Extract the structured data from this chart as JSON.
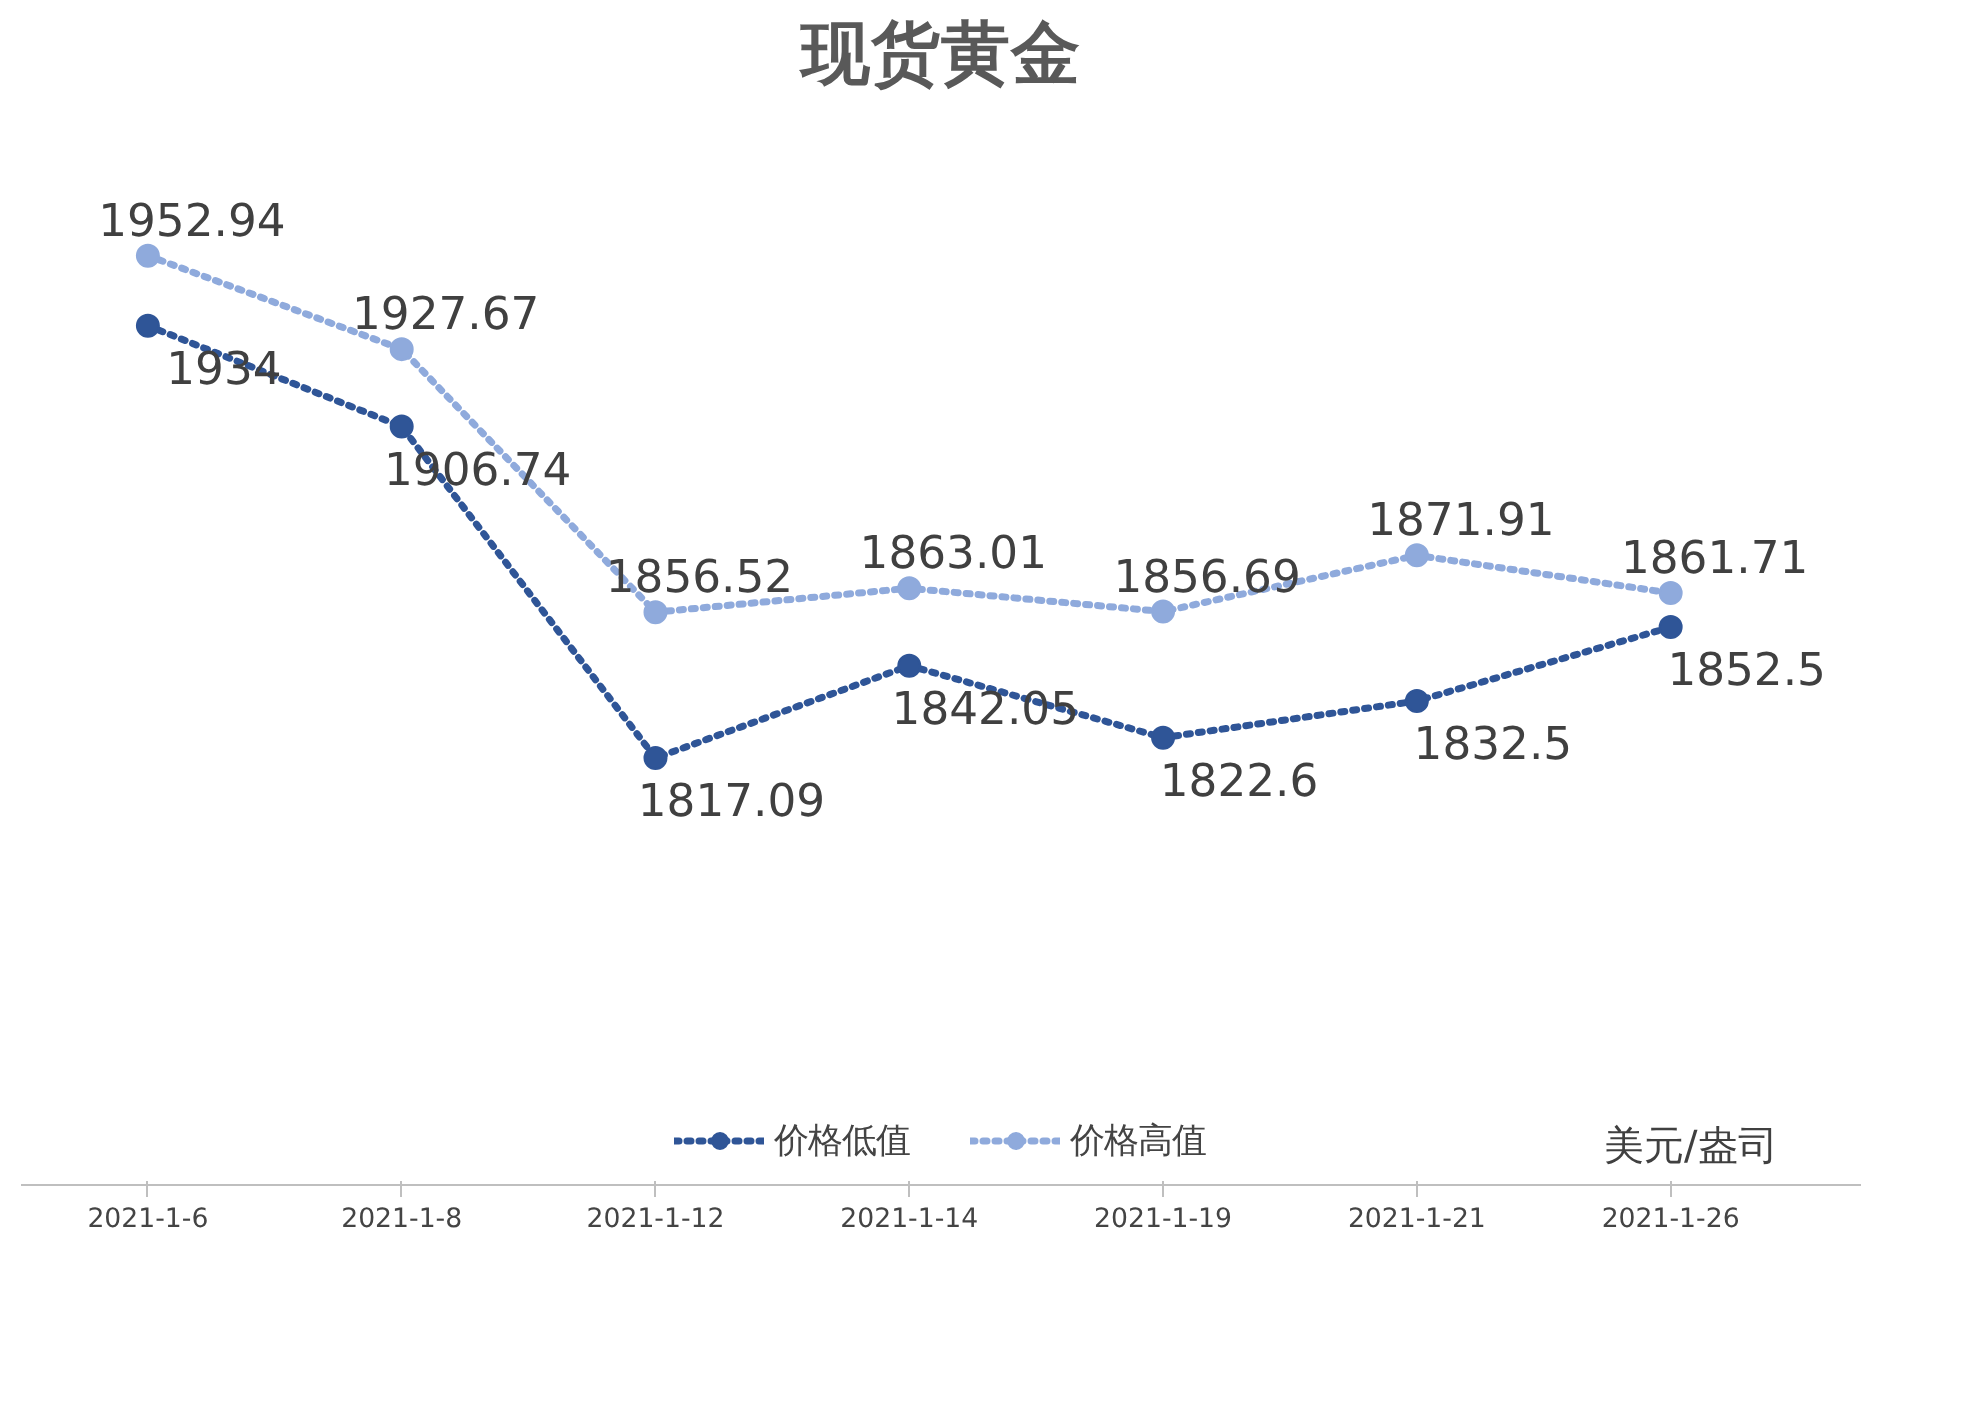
{
  "chart_data": {
    "type": "line",
    "title": "现货黄金",
    "categories": [
      "2021-1-6",
      "2021-1-8",
      "2021-1-12",
      "2021-1-14",
      "2021-1-19",
      "2021-1-21",
      "2021-1-26"
    ],
    "series": [
      {
        "name": "价格低值",
        "color": "#2f5597",
        "values": [
          1934,
          1906.74,
          1817.09,
          1842.05,
          1822.6,
          1832.5,
          1852.5
        ]
      },
      {
        "name": "价格高值",
        "color": "#8faadc",
        "values": [
          1952.94,
          1927.67,
          1856.52,
          1863.01,
          1856.69,
          1871.91,
          1861.71
        ]
      }
    ],
    "data_labels": true,
    "legend": "bottom",
    "marker": "circle",
    "line_style": "dotted",
    "grid": false,
    "tick_labels": "x",
    "annotations": [
      "美元/盎司"
    ]
  }
}
